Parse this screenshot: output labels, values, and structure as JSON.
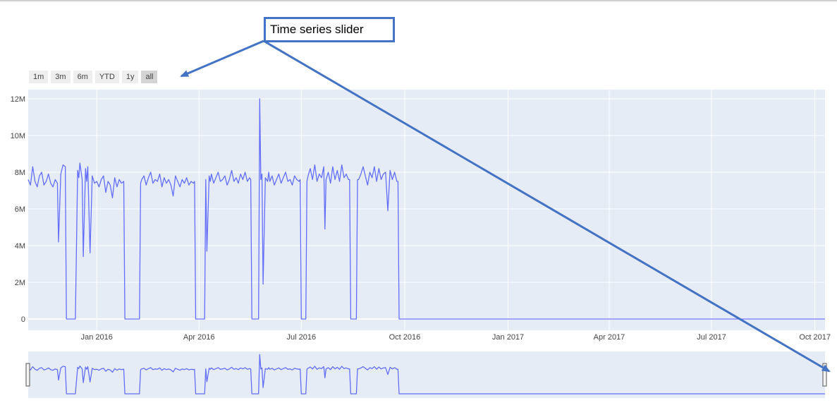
{
  "rangeselector": {
    "buttons": [
      {
        "label": "1m",
        "active": false
      },
      {
        "label": "3m",
        "active": false
      },
      {
        "label": "6m",
        "active": false
      },
      {
        "label": "YTD",
        "active": false
      },
      {
        "label": "1y",
        "active": false
      },
      {
        "label": "all",
        "active": true
      }
    ]
  },
  "annotation": {
    "text": "Time series slider",
    "color": "#4472c4"
  },
  "chart_data": {
    "type": "line",
    "title": "",
    "xlabel": "",
    "ylabel": "",
    "xlim": [
      "2015-11-01",
      "2017-10-10"
    ],
    "ylim": [
      0,
      12500000
    ],
    "grid": true,
    "legend": "none",
    "line_color": "#636efa",
    "plot_bg": "#e5ecf6",
    "x_ticks": [
      {
        "date": "2016-01-01",
        "label": "Jan 2016"
      },
      {
        "date": "2016-04-01",
        "label": "Apr 2016"
      },
      {
        "date": "2016-07-01",
        "label": "Jul 2016"
      },
      {
        "date": "2016-10-01",
        "label": "Oct 2016"
      },
      {
        "date": "2017-01-01",
        "label": "Jan 2017"
      },
      {
        "date": "2017-04-01",
        "label": "Apr 2017"
      },
      {
        "date": "2017-07-01",
        "label": "Jul 2017"
      },
      {
        "date": "2017-10-01",
        "label": "Oct 2017"
      }
    ],
    "y_ticks": [
      {
        "value": 0,
        "label": "0"
      },
      {
        "value": 2000000,
        "label": "2M"
      },
      {
        "value": 4000000,
        "label": "4M"
      },
      {
        "value": 6000000,
        "label": "6M"
      },
      {
        "value": 8000000,
        "label": "8M"
      },
      {
        "value": 10000000,
        "label": "10M"
      },
      {
        "value": 12000000,
        "label": "12M"
      }
    ],
    "series": [
      {
        "x": [
          "2015-11-01",
          "2015-11-03",
          "2015-11-05",
          "2015-11-07",
          "2015-11-09",
          "2015-11-11",
          "2015-11-13",
          "2015-11-15",
          "2015-11-17",
          "2015-11-19",
          "2015-11-21",
          "2015-11-23",
          "2015-11-25",
          "2015-11-27",
          "2015-11-28",
          "2015-11-30",
          "2015-12-02",
          "2015-12-04",
          "2015-12-05",
          "2015-12-07",
          "2015-12-09",
          "2015-12-11",
          "2015-12-13",
          "2015-12-15",
          "2015-12-16",
          "2015-12-17",
          "2015-12-19",
          "2015-12-20",
          "2015-12-22",
          "2015-12-23",
          "2015-12-24",
          "2015-12-26",
          "2015-12-28",
          "2015-12-30",
          "2016-01-01",
          "2016-01-03",
          "2016-01-05",
          "2016-01-07",
          "2016-01-09",
          "2016-01-11",
          "2016-01-13",
          "2016-01-15",
          "2016-01-17",
          "2016-01-19",
          "2016-01-21",
          "2016-01-23",
          "2016-01-25",
          "2016-01-26",
          "2016-02-08",
          "2016-02-09",
          "2016-02-10",
          "2016-02-12",
          "2016-02-14",
          "2016-02-16",
          "2016-02-18",
          "2016-02-20",
          "2016-02-22",
          "2016-02-24",
          "2016-02-26",
          "2016-02-28",
          "2016-03-01",
          "2016-03-03",
          "2016-03-05",
          "2016-03-07",
          "2016-03-09",
          "2016-03-11",
          "2016-03-13",
          "2016-03-15",
          "2016-03-17",
          "2016-03-19",
          "2016-03-21",
          "2016-03-23",
          "2016-03-25",
          "2016-03-27",
          "2016-03-28",
          "2016-03-29",
          "2016-04-06",
          "2016-04-07",
          "2016-04-08",
          "2016-04-10",
          "2016-04-11",
          "2016-04-12",
          "2016-04-14",
          "2016-04-16",
          "2016-04-18",
          "2016-04-20",
          "2016-04-22",
          "2016-04-24",
          "2016-04-26",
          "2016-04-28",
          "2016-04-30",
          "2016-05-02",
          "2016-05-04",
          "2016-05-06",
          "2016-05-08",
          "2016-05-10",
          "2016-05-12",
          "2016-05-14",
          "2016-05-16",
          "2016-05-17",
          "2016-05-18",
          "2016-05-24",
          "2016-05-25",
          "2016-05-26",
          "2016-05-27",
          "2016-05-28",
          "2016-05-30",
          "2016-06-01",
          "2016-06-02",
          "2016-06-03",
          "2016-06-05",
          "2016-06-07",
          "2016-06-09",
          "2016-06-11",
          "2016-06-13",
          "2016-06-15",
          "2016-06-17",
          "2016-06-19",
          "2016-06-21",
          "2016-06-23",
          "2016-06-25",
          "2016-06-27",
          "2016-06-29",
          "2016-06-30",
          "2016-07-01",
          "2016-07-05",
          "2016-07-06",
          "2016-07-07",
          "2016-07-09",
          "2016-07-11",
          "2016-07-13",
          "2016-07-15",
          "2016-07-17",
          "2016-07-19",
          "2016-07-21",
          "2016-07-22",
          "2016-07-23",
          "2016-07-25",
          "2016-07-27",
          "2016-07-29",
          "2016-07-31",
          "2016-08-02",
          "2016-08-04",
          "2016-08-06",
          "2016-08-08",
          "2016-08-10",
          "2016-08-12",
          "2016-08-13",
          "2016-08-14",
          "2016-08-19",
          "2016-08-20",
          "2016-08-21",
          "2016-08-23",
          "2016-08-25",
          "2016-08-27",
          "2016-08-29",
          "2016-08-31",
          "2016-09-02",
          "2016-09-04",
          "2016-09-06",
          "2016-09-08",
          "2016-09-10",
          "2016-09-12",
          "2016-09-14",
          "2016-09-16",
          "2016-09-18",
          "2016-09-20",
          "2016-09-22",
          "2016-09-24",
          "2016-09-25",
          "2016-09-26",
          "2016-10-01",
          "2017-10-10"
        ],
        "y": [
          7600000,
          7300000,
          8300000,
          7500000,
          7200000,
          7800000,
          8000000,
          7300000,
          7500000,
          7900000,
          7400000,
          7200000,
          7600000,
          7400000,
          4200000,
          7900000,
          8400000,
          8300000,
          0,
          0,
          0,
          0,
          0,
          8100000,
          7700000,
          8500000,
          7600000,
          3400000,
          8200000,
          7500000,
          8300000,
          3600000,
          7800000,
          7400000,
          7500000,
          7200000,
          7600000,
          7800000,
          6900000,
          7500000,
          7300000,
          6600000,
          7700000,
          7200000,
          7600000,
          7400000,
          7500000,
          0,
          0,
          7400000,
          7600000,
          7800000,
          7300000,
          7700000,
          8000000,
          7400000,
          7600000,
          7500000,
          7900000,
          7200000,
          7700000,
          7400000,
          7600000,
          7300000,
          6700000,
          7800000,
          7500000,
          7200000,
          7600000,
          7400000,
          7700000,
          7300000,
          7500000,
          7400000,
          7500000,
          0,
          0,
          7600000,
          3700000,
          7800000,
          7500000,
          7900000,
          7400000,
          7700000,
          8000000,
          7500000,
          7600000,
          7800000,
          7300000,
          7600000,
          8100000,
          7500000,
          7700000,
          7400000,
          7900000,
          7600000,
          8000000,
          7500000,
          7700000,
          7600000,
          0,
          0,
          12000000,
          7600000,
          7900000,
          1900000,
          7700000,
          7500000,
          8000000,
          7500000,
          7800000,
          7300000,
          7600000,
          7900000,
          7400000,
          7700000,
          8000000,
          7500000,
          7600000,
          7300000,
          7800000,
          7600000,
          7500000,
          7600000,
          0,
          0,
          7500000,
          7800000,
          8200000,
          7600000,
          8400000,
          7500000,
          7900000,
          7700000,
          8300000,
          4900000,
          7600000,
          8000000,
          7400000,
          8300000,
          7600000,
          8100000,
          7500000,
          8400000,
          7700000,
          7900000,
          7600000,
          7600000,
          0,
          0,
          7600000,
          7600000,
          7900000,
          8300000,
          7800000,
          7300000,
          8000000,
          7700000,
          8300000,
          7500000,
          8200000,
          7600000,
          7900000,
          8000000,
          5900000,
          8100000,
          7600000,
          8000000,
          7500000,
          7500000,
          0,
          0,
          0
        ]
      }
    ]
  }
}
